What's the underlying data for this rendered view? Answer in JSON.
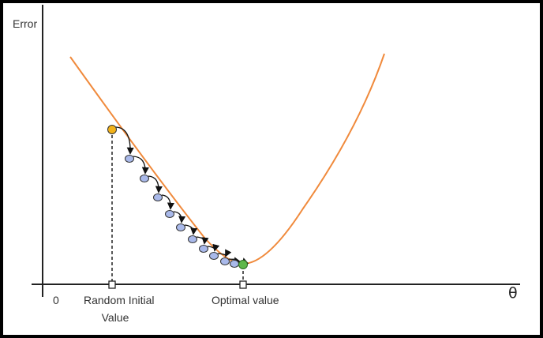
{
  "labels": {
    "y_axis": "Error",
    "x_axis": "θ",
    "origin": "0",
    "start_point_line1": "Random Initial",
    "start_point_line2": "Value",
    "optimum_point": "Optimal value"
  },
  "colors": {
    "curve": "#f08a3c",
    "start_point": "#f2b21a",
    "step_point": "#a9b9ea",
    "optimum_point": "#5fb84a",
    "axis": "#222222",
    "arrow": "#111111"
  },
  "diagram": {
    "step_count": 10
  }
}
